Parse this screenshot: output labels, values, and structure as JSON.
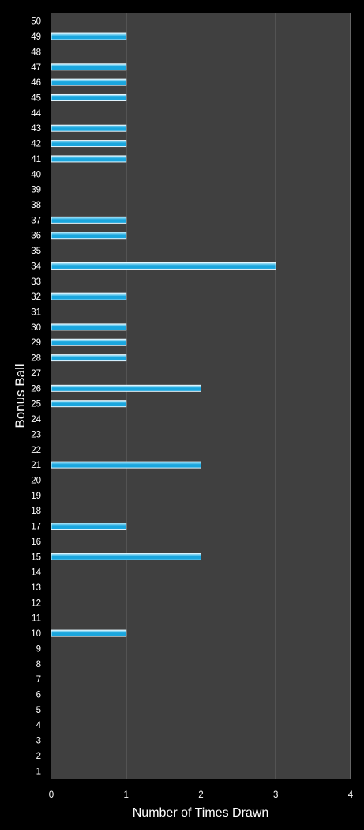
{
  "chart_data": {
    "type": "bar",
    "orientation": "horizontal",
    "xlabel": "Number of Times Drawn",
    "ylabel": "Bonus Ball",
    "xlim": [
      0,
      4
    ],
    "x_ticks": [
      "0",
      "1",
      "2",
      "3",
      "4"
    ],
    "grid": "vertical",
    "categories": [
      "1",
      "2",
      "3",
      "4",
      "5",
      "6",
      "7",
      "8",
      "9",
      "10",
      "11",
      "12",
      "13",
      "14",
      "15",
      "16",
      "17",
      "18",
      "19",
      "20",
      "21",
      "22",
      "23",
      "24",
      "25",
      "26",
      "27",
      "28",
      "29",
      "30",
      "31",
      "32",
      "33",
      "34",
      "35",
      "36",
      "37",
      "38",
      "39",
      "40",
      "41",
      "42",
      "43",
      "44",
      "45",
      "46",
      "47",
      "48",
      "49",
      "50"
    ],
    "values": [
      0,
      0,
      0,
      0,
      0,
      0,
      0,
      0,
      0,
      1,
      0,
      0,
      0,
      0,
      2,
      0,
      1,
      0,
      0,
      0,
      2,
      0,
      0,
      0,
      1,
      2,
      0,
      1,
      1,
      1,
      0,
      1,
      0,
      3,
      0,
      1,
      1,
      0,
      0,
      0,
      1,
      1,
      1,
      0,
      1,
      1,
      1,
      0,
      1,
      0
    ],
    "colors": {
      "background": "#000000",
      "plot_area": "#404040",
      "grid": "#8c8c8c",
      "bar": "#1aa6de",
      "bar_highlight": "#bfefff",
      "bar_border": "#e6f7ff",
      "text": "#ffffff"
    }
  }
}
